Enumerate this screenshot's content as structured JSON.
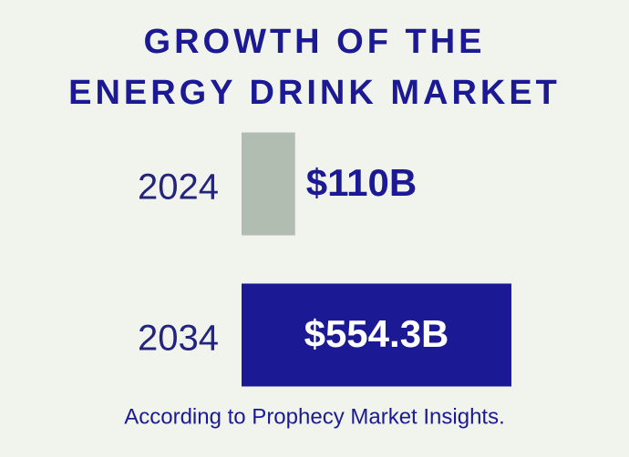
{
  "chart_data": {
    "type": "bar",
    "orientation": "horizontal",
    "title": [
      "GROWTH OF THE",
      "ENERGY DRINK MARKET"
    ],
    "categories": [
      "2024",
      "2034"
    ],
    "values": [
      110,
      554.3
    ],
    "value_labels": [
      "$110B",
      "$554.3B"
    ],
    "colors": [
      "#b2bdb1",
      "#1b1a94"
    ],
    "source": "According to Prophecy Market Insights."
  }
}
